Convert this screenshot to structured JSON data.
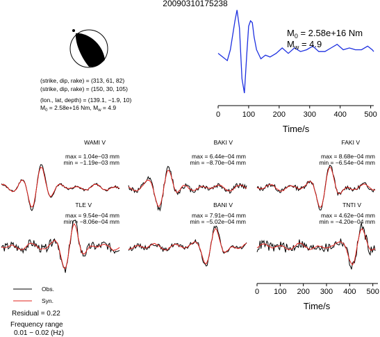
{
  "title": "20090310175238",
  "source_params": {
    "line1": "(strike, dip, rake) = (313, 61, 82)",
    "line2": "(strike, dip, rake) = (150, 30, 105)",
    "line3": "(lon., lat, depth) = (139.1, −1.9, 10)",
    "line4_prefix": "M",
    "line4_sub": "0",
    "line4_mid": " = 2.58e+16 Nm, M",
    "line4_sub2": "w",
    "line4_suffix": " = 4.9"
  },
  "stf_panel": {
    "m0_base": "M",
    "m0_sub": "0",
    "m0_value": " = 2.58e+16 Nm",
    "mw_base": "M",
    "mw_sub": "w",
    "mw_value": " = 4.9",
    "xlabel": "Time/s",
    "xticks": [
      0,
      100,
      200,
      300,
      400,
      500
    ]
  },
  "legend": {
    "obs_label": "Obs.",
    "syn_label": "Syn.",
    "residual": "Residual = 0.22",
    "freq_line1": "Frequency range",
    "freq_line2": "0.01 − 0.02 (Hz)"
  },
  "wave_axis": {
    "xlabel": "Time/s",
    "xticks": [
      0,
      100,
      200,
      300,
      400,
      500
    ]
  },
  "colors": {
    "observed": "#000000",
    "synthetic": "#e0201b",
    "stf": "#1c2fe0",
    "beachball_fill": "#000000"
  },
  "chart_data": [
    {
      "type": "line",
      "name": "source-time-function",
      "xlabel": "Time/s",
      "xlim": [
        0,
        510
      ],
      "series": [
        {
          "name": "",
          "x": [
            0,
            15,
            30,
            40,
            55,
            62,
            70,
            78,
            86,
            94,
            100,
            106,
            112,
            118,
            126,
            140,
            155,
            170,
            190,
            210,
            230,
            250,
            270,
            290,
            310,
            330,
            350,
            370,
            390,
            410,
            430,
            450,
            470,
            490,
            505,
            510
          ],
          "y": [
            0.1,
            0.0,
            -0.1,
            0.2,
            1.0,
            1.3,
            0.8,
            -0.6,
            -1.0,
            0.1,
            0.85,
            1.0,
            0.95,
            0.55,
            0.2,
            -0.05,
            0.05,
            0.0,
            0.1,
            0.25,
            0.1,
            0.25,
            0.15,
            0.2,
            0.3,
            0.15,
            0.15,
            0.25,
            0.35,
            0.2,
            0.25,
            0.2,
            0.2,
            0.3,
            0.2,
            0.15
          ]
        }
      ]
    },
    {
      "type": "line",
      "name": "WAMI V",
      "station": "WAMI V",
      "max": "max = 1.04e−03 mm",
      "min": "min = −1.19e−03 mm",
      "series": [
        {
          "name": "Obs."
        },
        {
          "name": "Syn."
        }
      ]
    },
    {
      "type": "line",
      "name": "BAKI V",
      "station": "BAKI V",
      "max": "max = 6.44e−04 mm",
      "min": "min = −8.70e−04 mm",
      "series": [
        {
          "name": "Obs."
        },
        {
          "name": "Syn."
        }
      ]
    },
    {
      "type": "line",
      "name": "FAKI V",
      "station": "FAKI V",
      "max": "max = 8.68e−04 mm",
      "min": "min = −6.54e−04 mm",
      "series": [
        {
          "name": "Obs."
        },
        {
          "name": "Syn."
        }
      ]
    },
    {
      "type": "line",
      "name": "TLE V",
      "station": "TLE V",
      "max": "max = 9.54e−04 mm",
      "min": "min = −8.06e−04 mm",
      "series": [
        {
          "name": "Obs."
        },
        {
          "name": "Syn."
        }
      ]
    },
    {
      "type": "line",
      "name": "BANI V",
      "station": "BANI V",
      "max": "max = 7.91e−04 mm",
      "min": "min = −5.02e−04 mm",
      "series": [
        {
          "name": "Obs."
        },
        {
          "name": "Syn."
        }
      ]
    },
    {
      "type": "line",
      "name": "TNTI V",
      "station": "TNTI V",
      "max": "max = 4.62e−04 mm",
      "min": "min = −4.20e−04 mm",
      "series": [
        {
          "name": "Obs."
        },
        {
          "name": "Syn."
        }
      ]
    }
  ]
}
